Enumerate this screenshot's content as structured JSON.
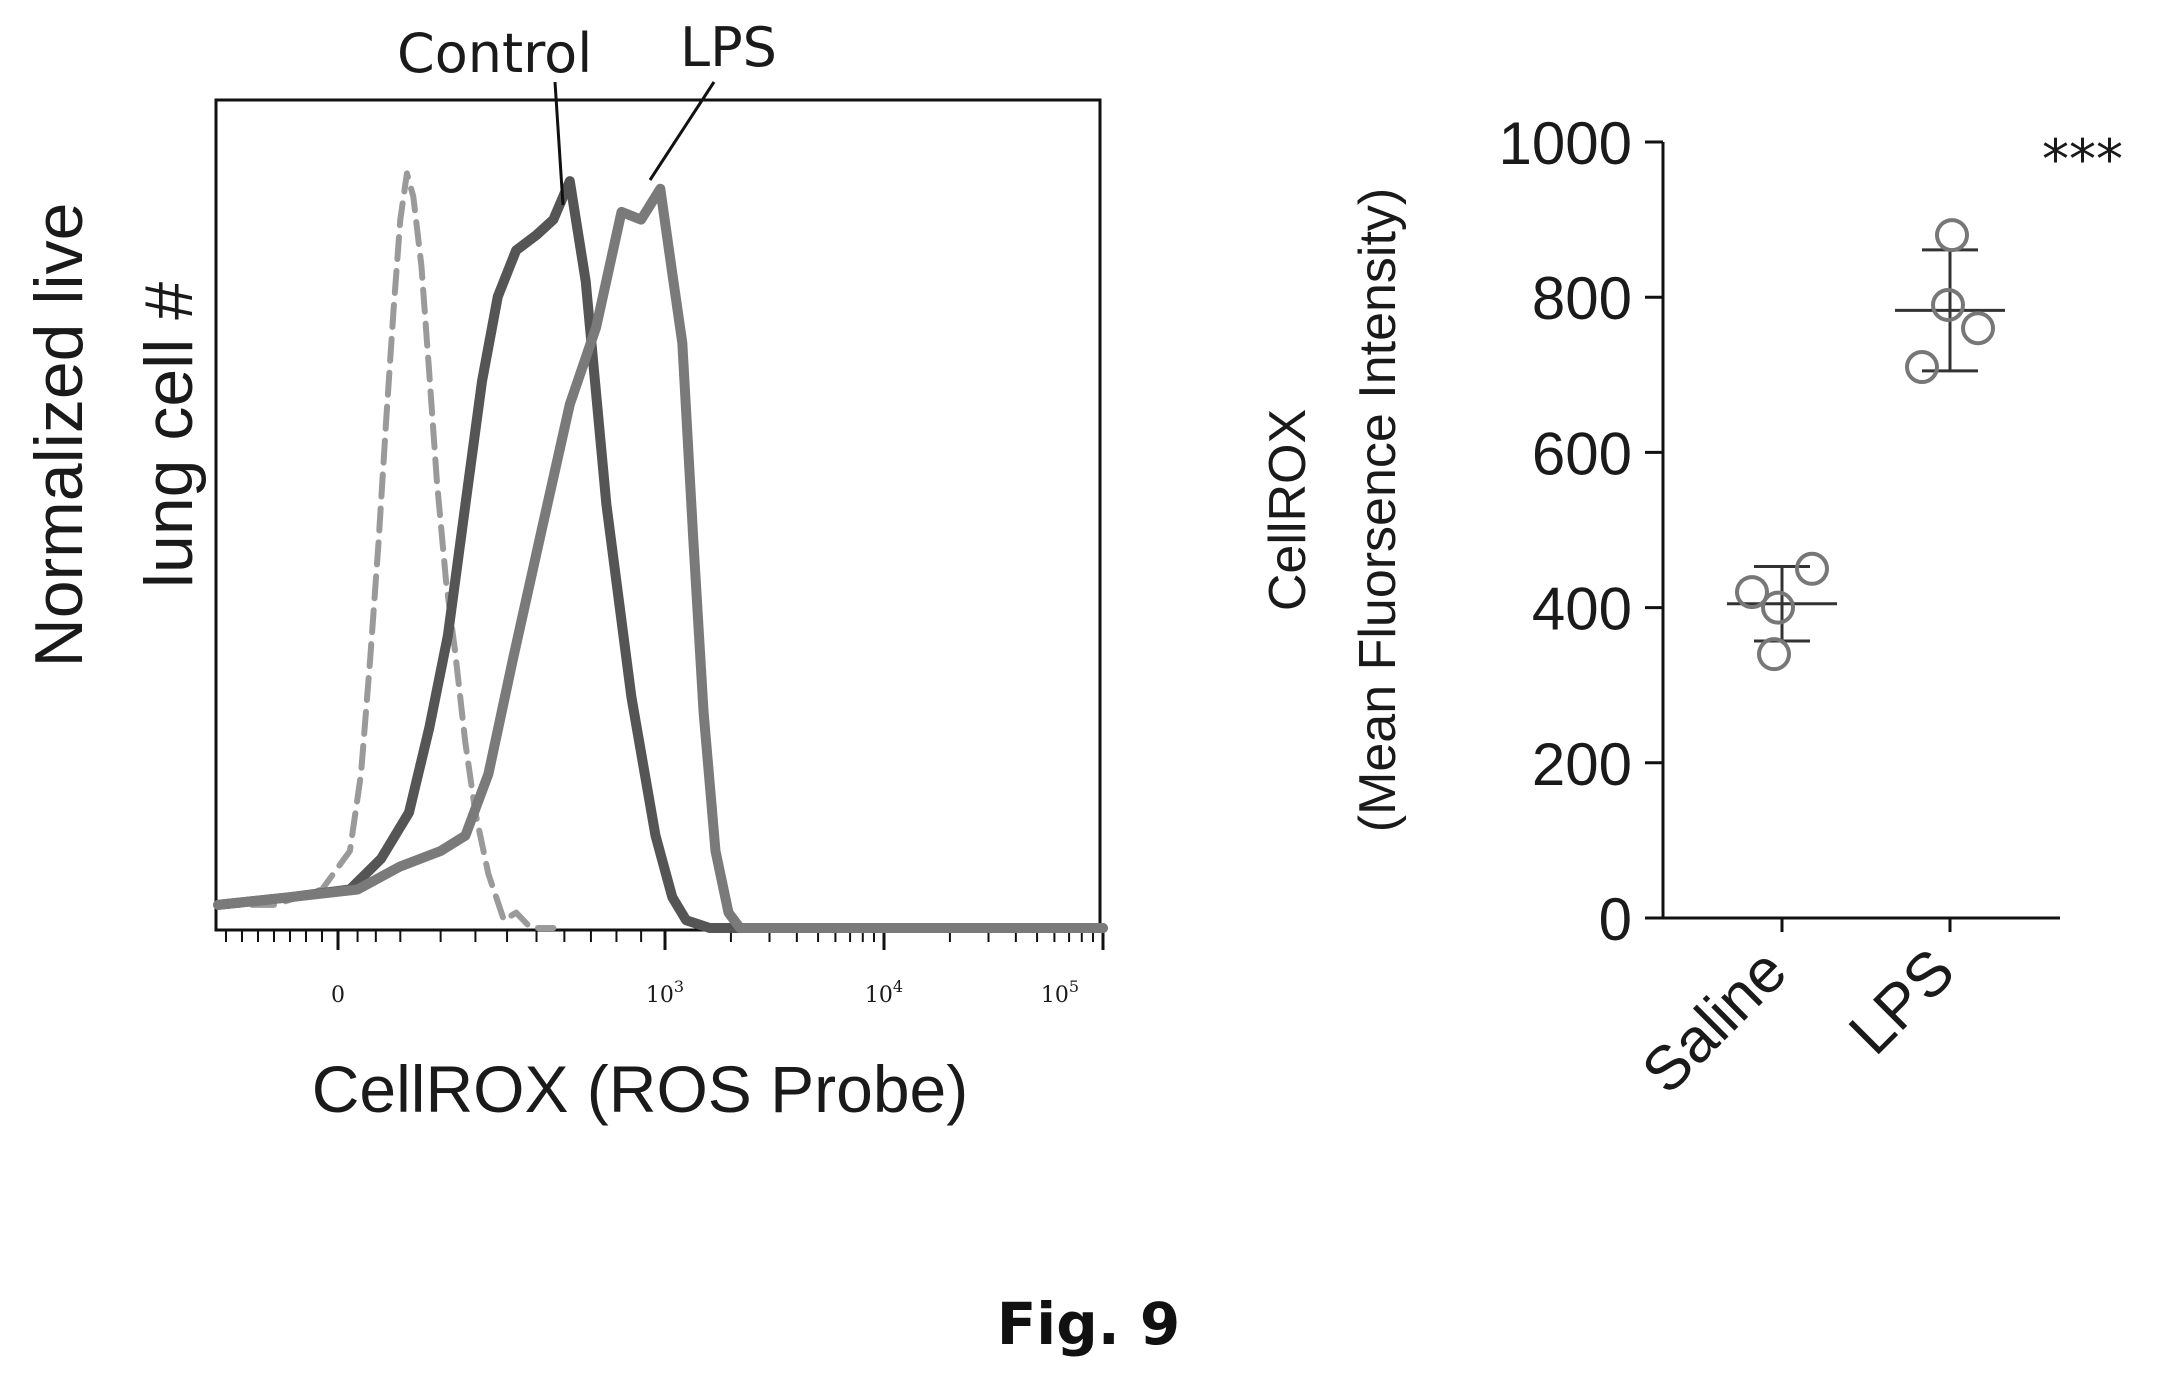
{
  "figure_caption": "Fig. 9",
  "chart_data": [
    {
      "type": "line",
      "chart": "histogram",
      "xlabel": "CellROX (ROS Probe)",
      "ylabel_lines": [
        "Normalized live",
        "lung cell #"
      ],
      "x_scale": "biexponential",
      "x_ticks": [
        "0",
        "10^3",
        "10^4",
        "10^5"
      ],
      "x_ticks_display": [
        {
          "base": "0",
          "exp": ""
        },
        {
          "base": "10",
          "exp": "3"
        },
        {
          "base": "10",
          "exp": "4"
        },
        {
          "base": "10",
          "exp": "5"
        }
      ],
      "annotations": [
        "Control",
        "LPS"
      ],
      "series": [
        {
          "name": "",
          "style": "dashed",
          "color": "#9a9a9a",
          "points": [
            [
              -150,
              0.03
            ],
            [
              -80,
              0.03
            ],
            [
              -20,
              0.05
            ],
            [
              10,
              0.1
            ],
            [
              25,
              0.2
            ],
            [
              40,
              0.35
            ],
            [
              55,
              0.5
            ],
            [
              70,
              0.66
            ],
            [
              85,
              0.8
            ],
            [
              100,
              0.92
            ],
            [
              115,
              0.98
            ],
            [
              130,
              0.95
            ],
            [
              150,
              0.86
            ],
            [
              170,
              0.72
            ],
            [
              190,
              0.58
            ],
            [
              215,
              0.45
            ],
            [
              240,
              0.36
            ],
            [
              270,
              0.24
            ],
            [
              300,
              0.15
            ],
            [
              340,
              0.07
            ],
            [
              390,
              0.01
            ],
            [
              430,
              0.02
            ],
            [
              480,
              0.0
            ],
            [
              560,
              0.0
            ]
          ]
        },
        {
          "name": "Control",
          "style": "solid",
          "color": "#555555",
          "points": [
            [
              -150,
              0.03
            ],
            [
              -60,
              0.04
            ],
            [
              10,
              0.05
            ],
            [
              60,
              0.09
            ],
            [
              120,
              0.15
            ],
            [
              170,
              0.26
            ],
            [
              220,
              0.38
            ],
            [
              270,
              0.55
            ],
            [
              320,
              0.71
            ],
            [
              370,
              0.82
            ],
            [
              430,
              0.88
            ],
            [
              500,
              0.9
            ],
            [
              560,
              0.92
            ],
            [
              620,
              0.97
            ],
            [
              680,
              0.84
            ],
            [
              760,
              0.55
            ],
            [
              860,
              0.3
            ],
            [
              960,
              0.12
            ],
            [
              1080,
              0.04
            ],
            [
              1250,
              0.01
            ],
            [
              1600,
              0.0
            ],
            [
              5000,
              0.0
            ],
            [
              100000,
              0.0
            ]
          ]
        },
        {
          "name": "LPS",
          "style": "solid",
          "color": "#7a7a7a",
          "points": [
            [
              -150,
              0.03
            ],
            [
              -60,
              0.04
            ],
            [
              20,
              0.05
            ],
            [
              100,
              0.08
            ],
            [
              200,
              0.1
            ],
            [
              270,
              0.12
            ],
            [
              340,
              0.2
            ],
            [
              420,
              0.35
            ],
            [
              520,
              0.52
            ],
            [
              620,
              0.68
            ],
            [
              720,
              0.78
            ],
            [
              820,
              0.93
            ],
            [
              900,
              0.92
            ],
            [
              980,
              0.96
            ],
            [
              1080,
              0.85
            ],
            [
              1200,
              0.76
            ],
            [
              1350,
              0.5
            ],
            [
              1500,
              0.28
            ],
            [
              1700,
              0.1
            ],
            [
              1950,
              0.02
            ],
            [
              2200,
              0.0
            ],
            [
              5000,
              0.0
            ],
            [
              100000,
              0.0
            ]
          ]
        }
      ]
    },
    {
      "type": "scatter",
      "ylabel_lines": [
        "CellROX",
        "(Mean Fluorsence Intensity)"
      ],
      "categories": [
        "Saline",
        "LPS"
      ],
      "ylim": [
        0,
        1000
      ],
      "yticks": [
        0,
        200,
        400,
        600,
        800,
        1000
      ],
      "significance": "***",
      "groups": [
        {
          "name": "Saline",
          "points": [
            420,
            400,
            450,
            340
          ],
          "mean": 405,
          "sd": 48
        },
        {
          "name": "LPS",
          "points": [
            880,
            790,
            760,
            710
          ],
          "mean": 783,
          "sd": 78
        }
      ]
    }
  ]
}
